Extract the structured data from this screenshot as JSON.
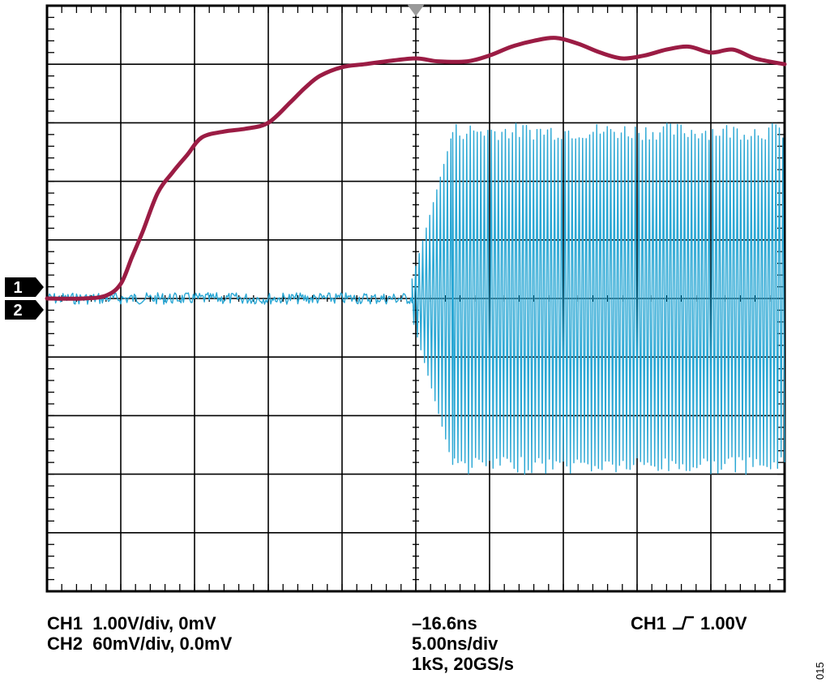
{
  "chart_data": {
    "type": "line",
    "divisions": {
      "x": 10,
      "y": 10
    },
    "grid": true,
    "series": [
      {
        "name": "CH1",
        "color": "#9b1c44",
        "scale_v_per_div": 1.0,
        "x_div": [
          0,
          0.5,
          0.8,
          1.0,
          1.15,
          1.3,
          1.5,
          1.7,
          1.9,
          2.1,
          2.4,
          2.7,
          3.0,
          3.3,
          3.5,
          3.7,
          4.0,
          4.3,
          4.6,
          5.0,
          5.3,
          5.7,
          6.0,
          6.3,
          6.6,
          6.9,
          7.2,
          7.5,
          7.8,
          8.1,
          8.4,
          8.7,
          9.0,
          9.3,
          9.6,
          10.0
        ],
        "y_v": [
          0.0,
          0.0,
          0.05,
          0.25,
          0.7,
          1.15,
          1.8,
          2.15,
          2.45,
          2.75,
          2.85,
          2.9,
          3.0,
          3.35,
          3.6,
          3.8,
          3.95,
          4.0,
          4.05,
          4.1,
          4.05,
          4.05,
          4.15,
          4.3,
          4.4,
          4.45,
          4.35,
          4.2,
          4.1,
          4.15,
          4.25,
          4.3,
          4.2,
          4.25,
          4.1,
          4.0
        ]
      },
      {
        "name": "CH2",
        "color": "#2aa7d4",
        "scale_mv_per_div": 60,
        "segments": [
          {
            "x_div": [
              0,
              4.95
            ],
            "amplitude_mv": 6,
            "oscillation": "noise"
          },
          {
            "x_div": [
              4.95,
              5.5
            ],
            "amplitude_mv": [
              20,
              170
            ],
            "oscillation": "rising"
          },
          {
            "x_div": [
              5.5,
              10.0
            ],
            "amplitude_mv": 180,
            "oscillation": "sinusoid"
          }
        ]
      }
    ],
    "markers": {
      "channel_1": "1",
      "channel_2": "2"
    }
  },
  "readouts": {
    "ch1_label": "CH1",
    "ch1_setting": "1.00V/div, 0mV",
    "ch2_label": "CH2",
    "ch2_setting": "60mV/div, 0.0mV",
    "trigger_position": "–16.6ns",
    "timebase": "5.00ns/div",
    "sample": "1kS, 20GS/s",
    "trigger_channel": "CH1",
    "trigger_level": "1.00V"
  },
  "figure_id": "015"
}
